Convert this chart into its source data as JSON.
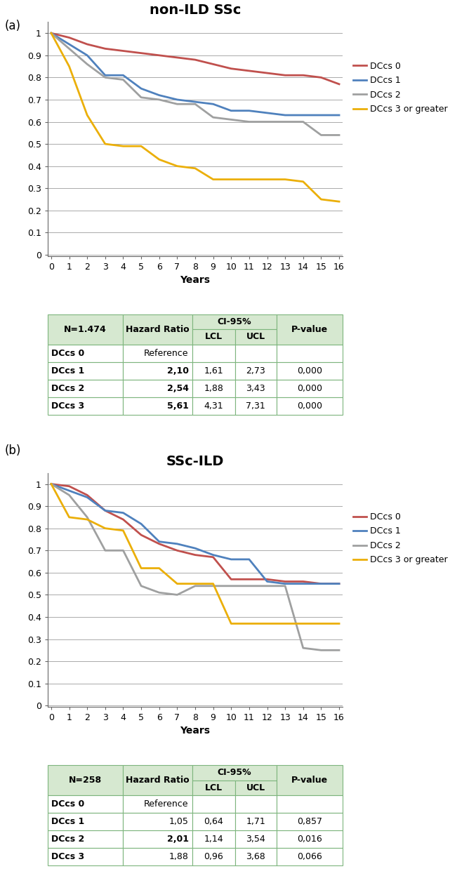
{
  "panel_a": {
    "title": "non-ILD SSc",
    "xlabel": "Years",
    "ytick_labels": [
      "0",
      "0.1",
      "0.2",
      "0.3",
      "0.4",
      "0.5",
      "0.6",
      "0.7",
      "0.8",
      "0.9",
      "1"
    ],
    "ytick_vals": [
      0,
      0.1,
      0.2,
      0.3,
      0.4,
      0.5,
      0.6,
      0.7,
      0.8,
      0.9,
      1.0
    ],
    "xticks": [
      0,
      1,
      2,
      3,
      4,
      5,
      6,
      7,
      8,
      9,
      10,
      11,
      12,
      13,
      14,
      15,
      16
    ],
    "lines": {
      "DCcs 0": {
        "x": [
          0,
          1,
          2,
          3,
          4,
          5,
          6,
          7,
          8,
          9,
          10,
          11,
          12,
          13,
          14,
          15,
          16
        ],
        "y": [
          1.0,
          0.98,
          0.95,
          0.93,
          0.92,
          0.91,
          0.9,
          0.89,
          0.88,
          0.86,
          0.84,
          0.83,
          0.82,
          0.81,
          0.81,
          0.8,
          0.77
        ],
        "color": "#C0504D",
        "lw": 2.0
      },
      "DCcs 1": {
        "x": [
          0,
          1,
          2,
          3,
          4,
          5,
          6,
          7,
          8,
          9,
          10,
          11,
          12,
          13,
          14,
          15,
          16
        ],
        "y": [
          1.0,
          0.95,
          0.9,
          0.81,
          0.81,
          0.75,
          0.72,
          0.7,
          0.69,
          0.68,
          0.65,
          0.65,
          0.64,
          0.63,
          0.63,
          0.63,
          0.63
        ],
        "color": "#4F81BD",
        "lw": 2.0
      },
      "DCcs 2": {
        "x": [
          0,
          1,
          2,
          3,
          4,
          5,
          6,
          7,
          8,
          9,
          10,
          11,
          12,
          13,
          14,
          15,
          16
        ],
        "y": [
          1.0,
          0.93,
          0.86,
          0.8,
          0.79,
          0.71,
          0.7,
          0.68,
          0.68,
          0.62,
          0.61,
          0.6,
          0.6,
          0.6,
          0.6,
          0.54,
          0.54
        ],
        "color": "#9FA0A0",
        "lw": 2.0
      },
      "DCcs 3 or greater": {
        "x": [
          0,
          1,
          2,
          3,
          4,
          5,
          6,
          7,
          8,
          9,
          10,
          11,
          12,
          13,
          14,
          15,
          16
        ],
        "y": [
          1.0,
          0.85,
          0.63,
          0.5,
          0.49,
          0.49,
          0.43,
          0.4,
          0.39,
          0.34,
          0.34,
          0.34,
          0.34,
          0.34,
          0.33,
          0.25,
          0.24
        ],
        "color": "#EBAF09",
        "lw": 2.0
      }
    },
    "table": {
      "n_label": "N=1.474",
      "rows": [
        [
          "DCcs 0",
          "Reference",
          "",
          "",
          ""
        ],
        [
          "DCcs 1",
          "2,10",
          "1,61",
          "2,73",
          "0,000"
        ],
        [
          "DCcs 2",
          "2,54",
          "1,88",
          "3,43",
          "0,000"
        ],
        [
          "DCcs 3",
          "5,61",
          "4,31",
          "7,31",
          "0,000"
        ]
      ],
      "bold_hr": [
        false,
        true,
        true,
        true
      ]
    }
  },
  "panel_b": {
    "title": "SSc-ILD",
    "xlabel": "Years",
    "ytick_labels": [
      "0",
      "0.1",
      "0.2",
      "0.3",
      "0.4",
      "0.5",
      "0.6",
      "0.7",
      "0.8",
      "0.9",
      "1"
    ],
    "ytick_vals": [
      0,
      0.1,
      0.2,
      0.3,
      0.4,
      0.5,
      0.6,
      0.7,
      0.8,
      0.9,
      1.0
    ],
    "xticks": [
      0,
      1,
      2,
      3,
      4,
      5,
      6,
      7,
      8,
      9,
      10,
      11,
      12,
      13,
      14,
      15,
      16
    ],
    "lines": {
      "DCcs 0": {
        "x": [
          0,
          1,
          2,
          3,
          4,
          5,
          6,
          7,
          8,
          9,
          10,
          11,
          12,
          13,
          14,
          15,
          16
        ],
        "y": [
          1.0,
          0.99,
          0.95,
          0.88,
          0.84,
          0.77,
          0.73,
          0.7,
          0.68,
          0.67,
          0.57,
          0.57,
          0.57,
          0.56,
          0.56,
          0.55,
          0.55
        ],
        "color": "#C0504D",
        "lw": 2.0
      },
      "DCcs 1": {
        "x": [
          0,
          1,
          2,
          3,
          4,
          5,
          6,
          7,
          8,
          9,
          10,
          11,
          12,
          13,
          14,
          15,
          16
        ],
        "y": [
          1.0,
          0.97,
          0.94,
          0.88,
          0.87,
          0.82,
          0.74,
          0.73,
          0.71,
          0.68,
          0.66,
          0.66,
          0.56,
          0.55,
          0.55,
          0.55,
          0.55
        ],
        "color": "#4F81BD",
        "lw": 2.0
      },
      "DCcs 2": {
        "x": [
          0,
          1,
          2,
          3,
          4,
          5,
          6,
          7,
          8,
          9,
          10,
          11,
          12,
          13,
          14,
          15,
          16
        ],
        "y": [
          1.0,
          0.95,
          0.85,
          0.7,
          0.7,
          0.54,
          0.51,
          0.5,
          0.54,
          0.54,
          0.54,
          0.54,
          0.54,
          0.54,
          0.26,
          0.25,
          0.25
        ],
        "color": "#9FA0A0",
        "lw": 2.0
      },
      "DCcs 3 or greater": {
        "x": [
          0,
          1,
          2,
          3,
          4,
          5,
          6,
          7,
          8,
          9,
          10,
          11,
          12,
          13,
          14,
          15,
          16
        ],
        "y": [
          1.0,
          0.85,
          0.84,
          0.8,
          0.79,
          0.62,
          0.62,
          0.55,
          0.55,
          0.55,
          0.37,
          0.37,
          0.37,
          0.37,
          0.37,
          0.37,
          0.37
        ],
        "color": "#EBAF09",
        "lw": 2.0
      }
    },
    "table": {
      "n_label": "N=258",
      "rows": [
        [
          "DCcs 0",
          "Reference",
          "",
          "",
          ""
        ],
        [
          "DCcs 1",
          "1,05",
          "0,64",
          "1,71",
          "0,857"
        ],
        [
          "DCcs 2",
          "2,01",
          "1,14",
          "3,54",
          "0,016"
        ],
        [
          "DCcs 3",
          "1,88",
          "0,96",
          "3,68",
          "0,066"
        ]
      ],
      "bold_hr": [
        false,
        false,
        true,
        false
      ]
    }
  },
  "legend_labels": [
    "DCcs 0",
    "DCcs 1",
    "DCcs 2",
    "DCcs 3 or greater"
  ],
  "legend_colors": [
    "#C0504D",
    "#4F81BD",
    "#9FA0A0",
    "#EBAF09"
  ],
  "table_header_bg": "#D6E8D0",
  "table_border_color": "#7DB57D",
  "panel_label_fontsize": 12,
  "title_fontsize": 14,
  "axis_tick_fontsize": 9,
  "axis_label_fontsize": 10,
  "legend_fontsize": 9,
  "table_fontsize": 9
}
